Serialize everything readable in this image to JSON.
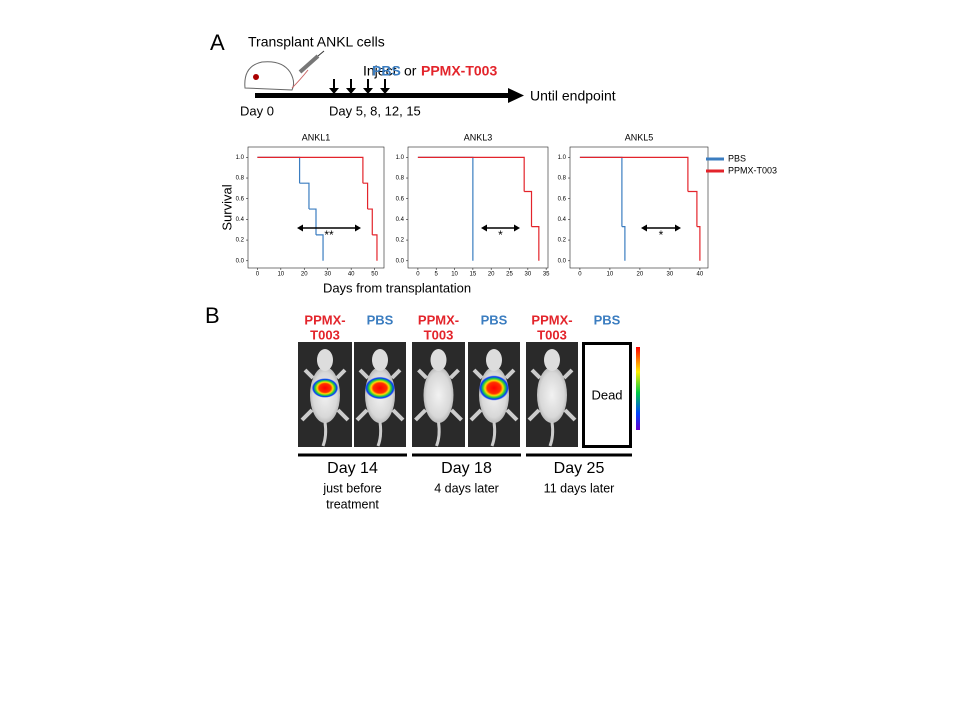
{
  "panel_a": {
    "label": "A",
    "transplant": "Transplant ANKL cells",
    "inject": "Inject",
    "inject_pbs": "PBS",
    "inject_or": "or",
    "inject_drug": "PPMX-T003",
    "day0": "Day 0",
    "days": "Day 5, 8, 12, 15",
    "endpoint": "Until endpoint"
  },
  "x_axis_label": "Days from transplantation",
  "chart_data": [
    {
      "type": "step",
      "title": "ANKL1",
      "y_axis_label": "Survival",
      "annotation": "**",
      "xlim": [
        -4,
        54
      ],
      "xticks": [
        0,
        10,
        20,
        30,
        40,
        50
      ],
      "ylim": [
        -0.07,
        1.1
      ],
      "yticks": [
        {
          "value": 0,
          "label": "0.0"
        },
        {
          "value": 0.2,
          "label": "0.2"
        },
        {
          "value": 0.4,
          "label": "0.4"
        },
        {
          "value": 0.6,
          "label": "0.6"
        },
        {
          "value": 0.8,
          "label": "0.8"
        },
        {
          "value": 1,
          "label": "1.0"
        }
      ],
      "series": [
        {
          "name": "PBS",
          "color": "#3b7dc0",
          "x": [
            0,
            18,
            22,
            25,
            28
          ],
          "values": [
            1,
            0.75,
            0.5,
            0.25,
            0
          ]
        },
        {
          "name": "PPMX-T003",
          "color": "#e3242b",
          "x": [
            0,
            45,
            47,
            49,
            51
          ],
          "values": [
            1,
            0.75,
            0.5,
            0.25,
            0
          ]
        }
      ]
    },
    {
      "type": "step",
      "title": "ANKL3",
      "annotation": "*",
      "xlim": [
        -2.7,
        35.5
      ],
      "xticks": [
        0,
        5,
        10,
        15,
        20,
        25,
        30,
        35
      ],
      "ylim": [
        -0.07,
        1.1
      ],
      "yticks": [
        {
          "value": 0,
          "label": "0.0"
        },
        {
          "value": 0.2,
          "label": "0.2"
        },
        {
          "value": 0.4,
          "label": "0.4"
        },
        {
          "value": 0.6,
          "label": "0.6"
        },
        {
          "value": 0.8,
          "label": "0.8"
        },
        {
          "value": 1,
          "label": "1.0"
        }
      ],
      "series": [
        {
          "color": "#3b7dc0",
          "x": [
            0,
            15
          ],
          "values": [
            1,
            0
          ]
        },
        {
          "color": "#e3242b",
          "x": [
            0,
            29,
            31,
            33
          ],
          "values": [
            1,
            0.67,
            0.33,
            0
          ]
        }
      ]
    },
    {
      "type": "step",
      "title": "ANKL5",
      "annotation": "*",
      "xlim": [
        -3.3,
        42.7
      ],
      "xticks": [
        0,
        10,
        20,
        30,
        40
      ],
      "ylim": [
        -0.07,
        1.1
      ],
      "yticks": [
        {
          "value": 0,
          "label": "0.0"
        },
        {
          "value": 0.2,
          "label": "0.2"
        },
        {
          "value": 0.4,
          "label": "0.4"
        },
        {
          "value": 0.6,
          "label": "0.6"
        },
        {
          "value": 0.8,
          "label": "0.8"
        },
        {
          "value": 1,
          "label": "1.0"
        }
      ],
      "series": [
        {
          "color": "#3b7dc0",
          "x": [
            0,
            14,
            15
          ],
          "values": [
            1,
            0.33,
            0
          ]
        },
        {
          "color": "#e3242b",
          "x": [
            0,
            36,
            39,
            40
          ],
          "values": [
            1,
            0.67,
            0.33,
            0
          ]
        }
      ]
    }
  ],
  "panel_b": {
    "label": "B",
    "columns": [
      {
        "line1": "PPMX-",
        "line2": "T003"
      },
      {
        "line1": "PBS"
      },
      {
        "line1": "PPMX-",
        "line2": "T003"
      },
      {
        "line1": "PBS"
      },
      {
        "line1": "PPMX-",
        "line2": "T003"
      },
      {
        "line1": "PBS"
      }
    ],
    "dead": "Dead",
    "groups": [
      {
        "day": "Day 14",
        "caption1": "just before",
        "caption2": "treatment"
      },
      {
        "day": "Day 18",
        "caption1": "4 days later"
      },
      {
        "day": "Day 25",
        "caption1": "11 days later"
      }
    ]
  }
}
